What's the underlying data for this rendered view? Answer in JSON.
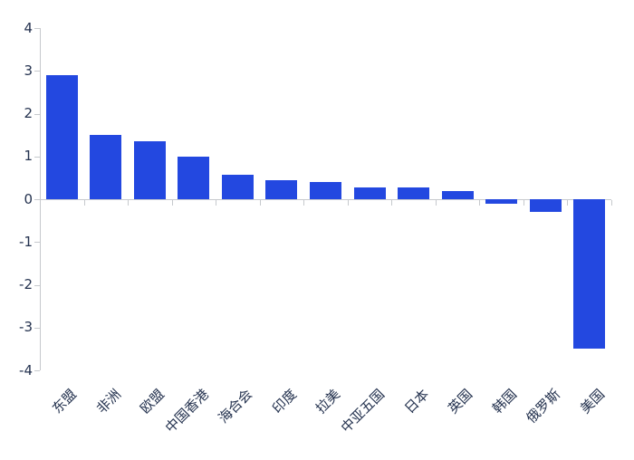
{
  "chart_data": {
    "type": "bar",
    "title": "",
    "xlabel": "",
    "ylabel": "",
    "categories": [
      "东盟",
      "非洲",
      "欧盟",
      "中国香港",
      "海合会",
      "印度",
      "拉美",
      "中亚五国",
      "日本",
      "英国",
      "韩国",
      "俄罗斯",
      "美国"
    ],
    "values": [
      2.9,
      1.5,
      1.35,
      1.0,
      0.57,
      0.45,
      0.4,
      0.28,
      0.27,
      0.2,
      -0.1,
      -0.3,
      -3.5
    ],
    "ylim": [
      -4,
      4
    ],
    "ytick_labels": [
      "4",
      "3",
      "2",
      "1",
      "0",
      "-1",
      "-2",
      "-3",
      "-4"
    ],
    "ytick_values": [
      4,
      3,
      2,
      1,
      0,
      -1,
      -2,
      -3,
      -4
    ],
    "grid": false,
    "legend": "none",
    "bar_color": "#2348e0",
    "axis_color": "#c6c9cd",
    "label_color": "#24324f",
    "background_color": "#ffffff"
  }
}
